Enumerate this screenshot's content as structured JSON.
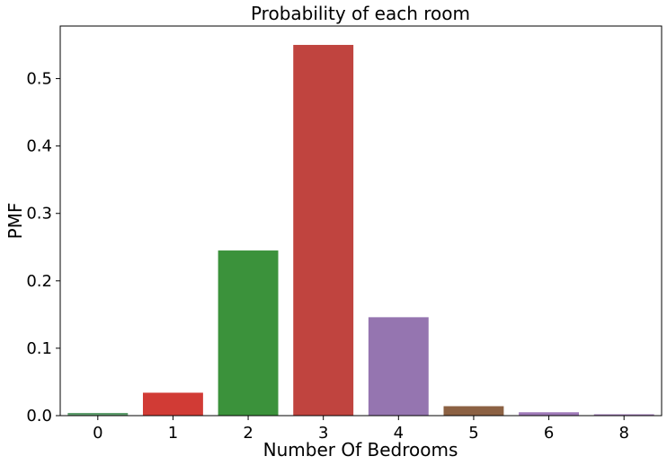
{
  "chart_data": {
    "type": "bar",
    "title": "Probability of each room",
    "xlabel": "Number Of Bedrooms",
    "ylabel": "PMF",
    "categories": [
      "0",
      "1",
      "2",
      "3",
      "4",
      "5",
      "6",
      "8"
    ],
    "values": [
      0.004,
      0.034,
      0.245,
      0.55,
      0.146,
      0.014,
      0.005,
      0.002
    ],
    "colors": [
      "#5f9e6e",
      "#d13b35",
      "#3b923b",
      "#c0443f",
      "#9575b0",
      "#8c6143",
      "#9f7ab8",
      "#9f7ab8"
    ],
    "ylim": [
      0,
      0.578
    ],
    "yticks": [
      0.0,
      0.1,
      0.2,
      0.3,
      0.4,
      0.5
    ],
    "ytick_labels": [
      "0.0",
      "0.1",
      "0.2",
      "0.3",
      "0.4",
      "0.5"
    ],
    "grid": false,
    "legend": "none"
  }
}
